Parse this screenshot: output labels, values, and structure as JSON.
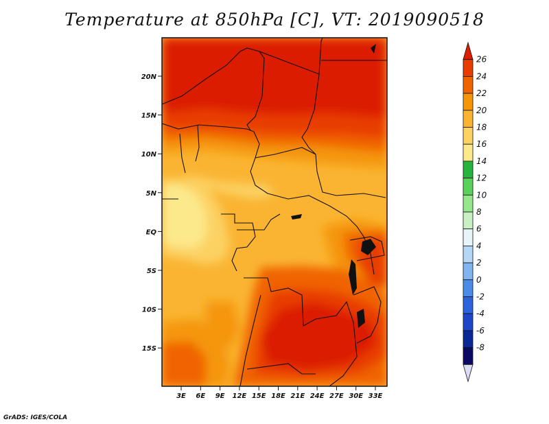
{
  "title": "Temperature at 850hPa [C], VT: 2019090518",
  "credit": "GrADS: IGES/COLA",
  "map": {
    "lat_labels": [
      "20N",
      "15N",
      "10N",
      "5N",
      "EQ",
      "5S",
      "10S",
      "15S"
    ],
    "lon_labels": [
      "3E",
      "6E",
      "9E",
      "12E",
      "15E",
      "18E",
      "21E",
      "24E",
      "27E",
      "30E",
      "33E"
    ]
  },
  "colorbar": {
    "labels": [
      "26",
      "24",
      "22",
      "20",
      "18",
      "16",
      "14",
      "12",
      "10",
      "8",
      "6",
      "4",
      "2",
      "0",
      "-2",
      "-4",
      "-6",
      "-8"
    ],
    "colors": [
      "#dc1e00",
      "#e83c00",
      "#f06400",
      "#f5960a",
      "#fab432",
      "#fcd264",
      "#fce98c",
      "#26b43c",
      "#5ad25a",
      "#96e68c",
      "#c8f0c3",
      "#e8f5f8",
      "#b4d7f5",
      "#82b4f0",
      "#4b8ce6",
      "#2d64dc",
      "#1e46c8",
      "#0a2896",
      "#0a0a64",
      "#dcdcf5"
    ]
  }
}
